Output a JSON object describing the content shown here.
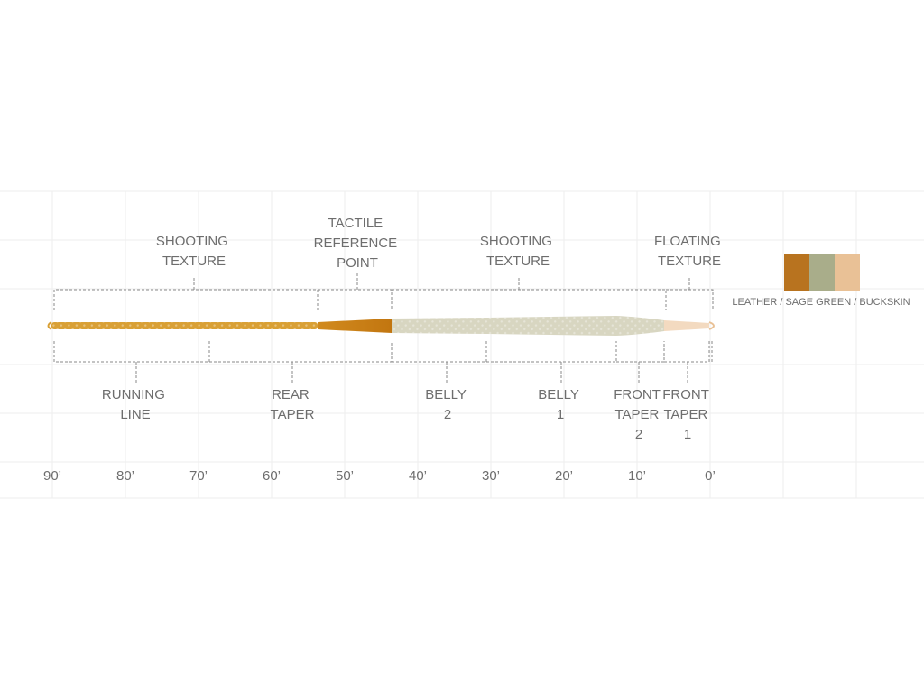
{
  "top_labels": [
    {
      "lines": [
        "SHOOTING",
        "TEXTURE"
      ]
    },
    {
      "lines": [
        "TACTILE",
        "REFERENCE",
        "POINT"
      ]
    },
    {
      "lines": [
        "SHOOTING",
        "TEXTURE"
      ]
    },
    {
      "lines": [
        "FLOATING",
        "TEXTURE"
      ]
    }
  ],
  "bottom_labels": [
    {
      "lines": [
        "RUNNING",
        "LINE"
      ]
    },
    {
      "lines": [
        "REAR",
        "TAPER"
      ]
    },
    {
      "lines": [
        "BELLY",
        "2"
      ]
    },
    {
      "lines": [
        "BELLY",
        "1"
      ]
    },
    {
      "lines": [
        "FRONT",
        "TAPER",
        "2"
      ]
    },
    {
      "lines": [
        "FRONT",
        "TAPER",
        "1"
      ]
    }
  ],
  "distance_axis": [
    "90’",
    "80’",
    "70’",
    "60’",
    "50’",
    "40’",
    "30’",
    "20’",
    "10’",
    "0’"
  ],
  "legend": {
    "text": "LEATHER / SAGE GREEN / BUCKSKIN",
    "swatches": [
      {
        "name": "leather",
        "color": "#b8731f"
      },
      {
        "name": "sage-green",
        "color": "#a9ad8a"
      },
      {
        "name": "buckskin",
        "color": "#e9c196"
      }
    ]
  },
  "colors": {
    "running_line": "#d9a035",
    "leather": "#c97e10",
    "sage": "#d9d7c3",
    "buckskin": "#f2d8bd",
    "bracket": "#8a8a8a",
    "grid": "#eeeeee",
    "label": "#6d6d6d"
  }
}
